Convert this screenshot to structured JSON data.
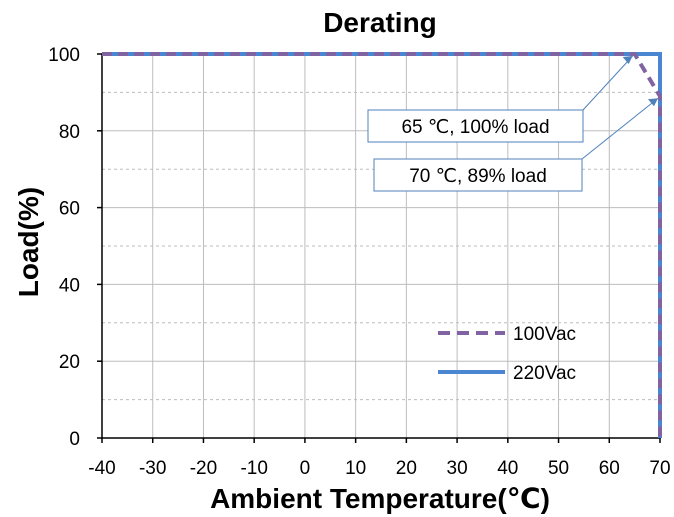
{
  "chart_data": {
    "type": "line",
    "title": "Derating",
    "xlabel": "Ambient Temperature(℃)",
    "ylabel": "Load(%)",
    "xlim": [
      -40,
      70
    ],
    "ylim": [
      0,
      100
    ],
    "x_ticks": [
      "-40",
      "-30",
      "-20",
      "-10",
      "0",
      "10",
      "20",
      "30",
      "40",
      "50",
      "60",
      "70"
    ],
    "y_ticks": [
      "0",
      "20",
      "40",
      "60",
      "80",
      "100"
    ],
    "grid": true,
    "legend_position": "bottom-right",
    "series": [
      {
        "name": "100Vac",
        "style": "dashed",
        "color": "#8064a2",
        "points": [
          [
            -40,
            100
          ],
          [
            65,
            100
          ],
          [
            70,
            89
          ],
          [
            70,
            0
          ]
        ]
      },
      {
        "name": "220Vac",
        "style": "solid",
        "color": "#4a86d2",
        "points": [
          [
            -40,
            100
          ],
          [
            70,
            100
          ],
          [
            70,
            0
          ]
        ]
      }
    ],
    "annotations": [
      {
        "text": "65 ℃, 100% load",
        "x": 65,
        "y": 100
      },
      {
        "text": "70 ℃, 89% load",
        "x": 70,
        "y": 89
      }
    ]
  }
}
